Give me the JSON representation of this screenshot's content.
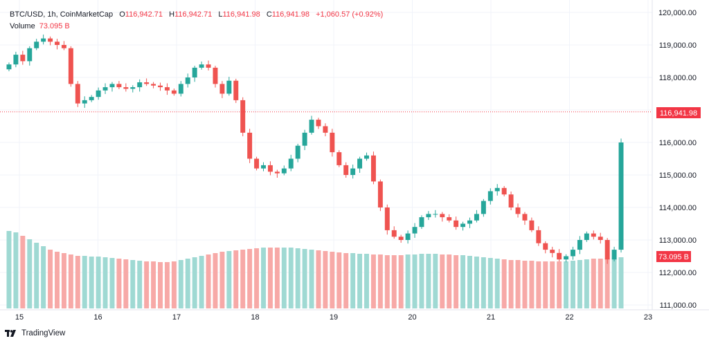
{
  "legend": {
    "symbol": "BTC/USD, 1h, CoinMarketCap",
    "o_label": "O",
    "o_value": "116,942.71",
    "h_label": "H",
    "h_value": "116,942.71",
    "l_label": "L",
    "l_value": "116,941.98",
    "c_label": "C",
    "c_value": "116,941.98",
    "change": "+1,060.57 (+0.92%)",
    "volume_label": "Volume",
    "volume_value": "73.095 B"
  },
  "branding": {
    "name": "TradingView"
  },
  "colors": {
    "up": "#26a69a",
    "down": "#ef5350",
    "vol_up": "#9fd9d3",
    "vol_down": "#f7a9a7",
    "price_label": "#f23645",
    "grid": "#f0f3fa"
  },
  "chart_data": {
    "type": "candlestick",
    "title": "BTC/USD, 1h, CoinMarketCap",
    "xlabel": "",
    "ylabel": "",
    "x_ticks": [
      "15",
      "16",
      "17",
      "18",
      "19",
      "20",
      "21",
      "22",
      "23"
    ],
    "y_ticks": [
      "120,000.00",
      "119,000.00",
      "118,000.00",
      "117,000.00",
      "116,000.00",
      "115,000.00",
      "114,000.00",
      "113,000.00",
      "112,000.00",
      "111,000.00"
    ],
    "ylim": [
      110800,
      120300
    ],
    "current_price": 116941.98,
    "current_price_label": "116,941.98",
    "current_volume_label": "73.095 B",
    "series": [
      {
        "name": "price (approx. close, hourly samples)",
        "values": [
          118400,
          118700,
          118500,
          118900,
          119100,
          119200,
          119100,
          119000,
          118900,
          117800,
          117200,
          117300,
          117400,
          117600,
          117700,
          117800,
          117700,
          117650,
          117700,
          117850,
          117800,
          117750,
          117700,
          117600,
          117500,
          117800,
          118000,
          118300,
          118400,
          118300,
          117800,
          117500,
          117900,
          117300,
          116300,
          115500,
          115200,
          115300,
          115100,
          115050,
          115200,
          115500,
          115900,
          116300,
          116700,
          116500,
          116300,
          115700,
          115300,
          115000,
          115200,
          115500,
          115600,
          114800,
          114000,
          113300,
          113100,
          113000,
          113200,
          113400,
          113700,
          113800,
          113800,
          113700,
          113600,
          113400,
          113500,
          113600,
          113800,
          114200,
          114500,
          114600,
          114400,
          114000,
          113800,
          113600,
          113300,
          112900,
          112700,
          112600,
          112400,
          112500,
          112700,
          113000,
          113200,
          113100,
          113000,
          112400,
          112700,
          116000
        ]
      },
      {
        "name": "volume (relative)",
        "values": [
          112,
          110,
          105,
          100,
          95,
          90,
          85,
          82,
          80,
          78,
          76,
          76,
          75,
          75,
          74,
          73,
          72,
          71,
          70,
          69,
          68,
          68,
          67,
          67,
          68,
          70,
          72,
          74,
          76,
          78,
          80,
          82,
          83,
          84,
          85,
          86,
          87,
          88,
          88,
          88,
          88,
          88,
          87,
          86,
          85,
          84,
          83,
          82,
          81,
          80,
          80,
          79,
          79,
          78,
          78,
          77,
          77,
          77,
          78,
          78,
          79,
          79,
          79,
          78,
          78,
          77,
          77,
          76,
          75,
          74,
          73,
          72,
          71,
          70,
          70,
          69,
          69,
          68,
          68,
          68,
          68,
          68,
          69,
          70,
          71,
          72,
          72,
          73,
          73,
          74
        ]
      }
    ]
  }
}
